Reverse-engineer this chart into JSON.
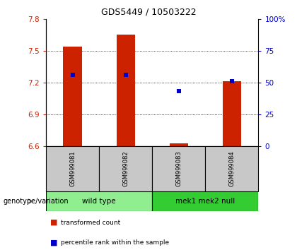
{
  "title": "GDS5449 / 10503222",
  "samples": [
    "GSM999081",
    "GSM999082",
    "GSM999083",
    "GSM999084"
  ],
  "group1_name": "wild type",
  "group2_name": "mek1 mek2 null",
  "group1_color": "#90EE90",
  "group2_color": "#33CC33",
  "bar_tops": [
    7.54,
    7.65,
    6.63,
    7.21
  ],
  "bar_bottom": 6.6,
  "pct_ranks": [
    55.8,
    55.8,
    43.3,
    50.8
  ],
  "ylim": [
    6.6,
    7.8
  ],
  "yticks_left": [
    6.6,
    6.9,
    7.2,
    7.5,
    7.8
  ],
  "yticks_right": [
    0,
    25,
    50,
    75,
    100
  ],
  "left_color": "#CC2200",
  "right_color": "#0000CC",
  "bar_color": "#CC2200",
  "percentile_color": "#0000CC",
  "gray_color": "#C8C8C8",
  "title_fontsize": 9,
  "bar_width": 0.35,
  "x_positions": [
    0,
    1,
    2,
    3
  ],
  "legend_bar_label": "transformed count",
  "legend_pct_label": "percentile rank within the sample",
  "genotype_label": "genotype/variation"
}
